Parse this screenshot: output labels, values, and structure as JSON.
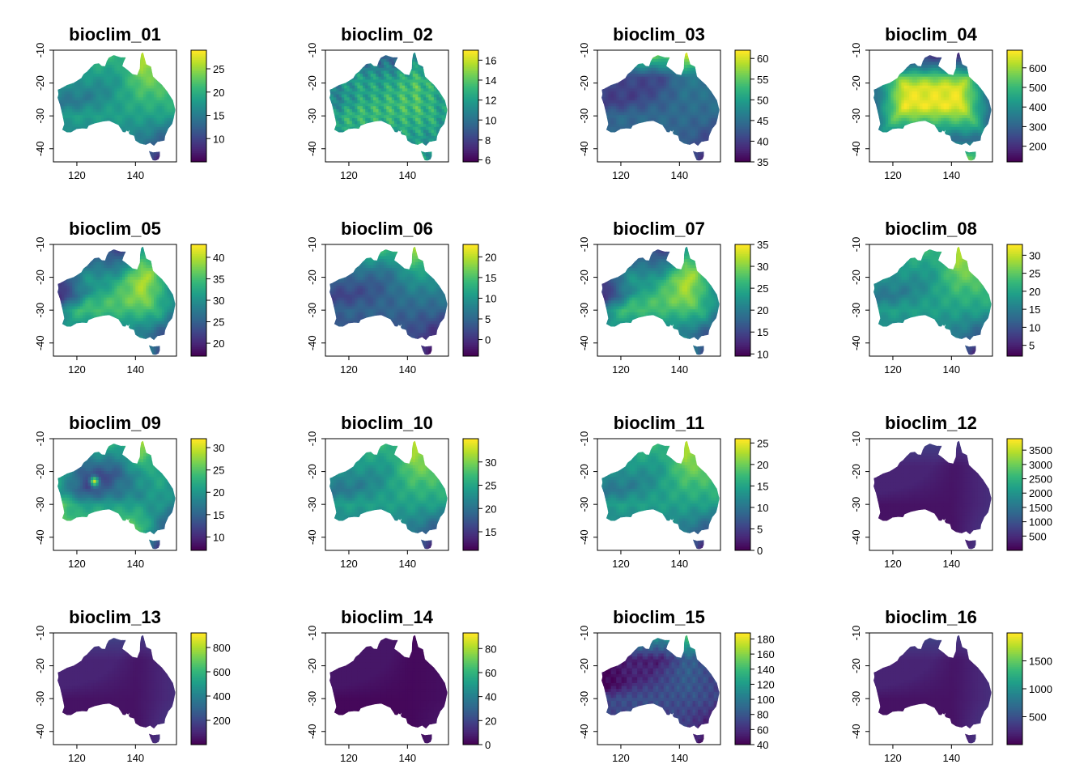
{
  "figure": {
    "layout": {
      "rows": 4,
      "cols": 4
    },
    "colormap": "viridis",
    "colors": {
      "viridis": [
        "#440154",
        "#482878",
        "#3e4989",
        "#31688e",
        "#26828e",
        "#1f9e89",
        "#35b779",
        "#6ece58",
        "#b5de2b",
        "#fde725"
      ],
      "background": "#ffffff",
      "axis": "#000000"
    }
  },
  "chart_data": [
    {
      "type": "heatmap",
      "title": "bioclim_01",
      "xlim": [
        112,
        154
      ],
      "ylim": [
        -44,
        -10
      ],
      "x_ticks": [
        "120",
        "140"
      ],
      "y_ticks": [
        "-10",
        "-20",
        "-30",
        "-40"
      ],
      "legend_ticks": [
        "10",
        "15",
        "20",
        "25"
      ],
      "legend_range": [
        5,
        29
      ],
      "pattern": "temp_north",
      "hotspot": false
    },
    {
      "type": "heatmap",
      "title": "bioclim_02",
      "xlim": [
        112,
        154
      ],
      "ylim": [
        -44,
        -10
      ],
      "x_ticks": [
        "120",
        "140"
      ],
      "y_ticks": [
        "-10",
        "-20",
        "-30",
        "-40"
      ],
      "legend_ticks": [
        "6",
        "8",
        "10",
        "12",
        "14",
        "16"
      ],
      "legend_range": [
        5.8,
        17
      ],
      "pattern": "diurnal",
      "hotspot": false
    },
    {
      "type": "heatmap",
      "title": "bioclim_03",
      "xlim": [
        112,
        154
      ],
      "ylim": [
        -44,
        -10
      ],
      "x_ticks": [
        "120",
        "140"
      ],
      "y_ticks": [
        "-10",
        "-20",
        "-30",
        "-40"
      ],
      "legend_ticks": [
        "35",
        "40",
        "45",
        "50",
        "55",
        "60"
      ],
      "legend_range": [
        35,
        62
      ],
      "pattern": "isothermality",
      "hotspot": false
    },
    {
      "type": "heatmap",
      "title": "bioclim_04",
      "xlim": [
        112,
        154
      ],
      "ylim": [
        -44,
        -10
      ],
      "x_ticks": [
        "120",
        "140"
      ],
      "y_ticks": [
        "-10",
        "-20",
        "-30",
        "-40"
      ],
      "legend_ticks": [
        "200",
        "300",
        "400",
        "500",
        "600"
      ],
      "legend_range": [
        120,
        690
      ],
      "pattern": "seasonality",
      "hotspot": false
    },
    {
      "type": "heatmap",
      "title": "bioclim_05",
      "xlim": [
        112,
        154
      ],
      "ylim": [
        -44,
        -10
      ],
      "x_ticks": [
        "120",
        "140"
      ],
      "y_ticks": [
        "-10",
        "-20",
        "-30",
        "-40"
      ],
      "legend_ticks": [
        "20",
        "25",
        "30",
        "35",
        "40"
      ],
      "legend_range": [
        17,
        43
      ],
      "pattern": "interior_hot",
      "hotspot": false
    },
    {
      "type": "heatmap",
      "title": "bioclim_06",
      "xlim": [
        112,
        154
      ],
      "ylim": [
        -44,
        -10
      ],
      "x_ticks": [
        "120",
        "140"
      ],
      "y_ticks": [
        "-10",
        "-20",
        "-30",
        "-40"
      ],
      "legend_ticks": [
        "0",
        "5",
        "10",
        "15",
        "20"
      ],
      "legend_range": [
        -4,
        23
      ],
      "pattern": "min_temp",
      "hotspot": false
    },
    {
      "type": "heatmap",
      "title": "bioclim_07",
      "xlim": [
        112,
        154
      ],
      "ylim": [
        -44,
        -10
      ],
      "x_ticks": [
        "120",
        "140"
      ],
      "y_ticks": [
        "-10",
        "-20",
        "-30",
        "-40"
      ],
      "legend_ticks": [
        "10",
        "15",
        "20",
        "25",
        "30",
        "35"
      ],
      "legend_range": [
        9.5,
        35
      ],
      "pattern": "interior_hot",
      "hotspot": false
    },
    {
      "type": "heatmap",
      "title": "bioclim_08",
      "xlim": [
        112,
        154
      ],
      "ylim": [
        -44,
        -10
      ],
      "x_ticks": [
        "120",
        "140"
      ],
      "y_ticks": [
        "-10",
        "-20",
        "-30",
        "-40"
      ],
      "legend_ticks": [
        "5",
        "10",
        "15",
        "20",
        "25",
        "30"
      ],
      "legend_range": [
        2,
        33
      ],
      "pattern": "temp_north",
      "hotspot": false
    },
    {
      "type": "heatmap",
      "title": "bioclim_09",
      "xlim": [
        112,
        154
      ],
      "ylim": [
        -44,
        -10
      ],
      "x_ticks": [
        "120",
        "140"
      ],
      "y_ticks": [
        "-10",
        "-20",
        "-30",
        "-40"
      ],
      "legend_ticks": [
        "10",
        "15",
        "20",
        "25",
        "30"
      ],
      "legend_range": [
        7,
        32
      ],
      "pattern": "dry_quarter",
      "hotspot": true
    },
    {
      "type": "heatmap",
      "title": "bioclim_10",
      "xlim": [
        112,
        154
      ],
      "ylim": [
        -44,
        -10
      ],
      "x_ticks": [
        "120",
        "140"
      ],
      "y_ticks": [
        "-10",
        "-20",
        "-30",
        "-40"
      ],
      "legend_ticks": [
        "15",
        "20",
        "25",
        "30"
      ],
      "legend_range": [
        11,
        35
      ],
      "pattern": "temp_north",
      "hotspot": false
    },
    {
      "type": "heatmap",
      "title": "bioclim_11",
      "xlim": [
        112,
        154
      ],
      "ylim": [
        -44,
        -10
      ],
      "x_ticks": [
        "120",
        "140"
      ],
      "y_ticks": [
        "-10",
        "-20",
        "-30",
        "-40"
      ],
      "legend_ticks": [
        "0",
        "5",
        "10",
        "15",
        "20",
        "25"
      ],
      "legend_range": [
        0,
        26
      ],
      "pattern": "temp_north",
      "hotspot": false
    },
    {
      "type": "heatmap",
      "title": "bioclim_12",
      "xlim": [
        112,
        154
      ],
      "ylim": [
        -44,
        -10
      ],
      "x_ticks": [
        "120",
        "140"
      ],
      "y_ticks": [
        "-10",
        "-20",
        "-30",
        "-40"
      ],
      "legend_ticks": [
        "500",
        "1000",
        "1500",
        "2000",
        "2500",
        "3000",
        "3500"
      ],
      "legend_range": [
        0,
        3900
      ],
      "pattern": "precip",
      "hotspot": false
    },
    {
      "type": "heatmap",
      "title": "bioclim_13",
      "xlim": [
        112,
        154
      ],
      "ylim": [
        -44,
        -10
      ],
      "x_ticks": [
        "120",
        "140"
      ],
      "y_ticks": [
        "-10",
        "-20",
        "-30",
        "-40"
      ],
      "legend_ticks": [
        "200",
        "400",
        "600",
        "800"
      ],
      "legend_range": [
        0,
        920
      ],
      "pattern": "precip",
      "hotspot": false
    },
    {
      "type": "heatmap",
      "title": "bioclim_14",
      "xlim": [
        112,
        154
      ],
      "ylim": [
        -44,
        -10
      ],
      "x_ticks": [
        "120",
        "140"
      ],
      "y_ticks": [
        "-10",
        "-20",
        "-30",
        "-40"
      ],
      "legend_ticks": [
        "0",
        "20",
        "40",
        "60",
        "80"
      ],
      "legend_range": [
        0,
        93
      ],
      "pattern": "precip_dry",
      "hotspot": false
    },
    {
      "type": "heatmap",
      "title": "bioclim_15",
      "xlim": [
        112,
        154
      ],
      "ylim": [
        -44,
        -10
      ],
      "x_ticks": [
        "120",
        "140"
      ],
      "y_ticks": [
        "-10",
        "-20",
        "-30",
        "-40"
      ],
      "legend_ticks": [
        "40",
        "60",
        "80",
        "100",
        "120",
        "140",
        "160",
        "180"
      ],
      "legend_range": [
        40,
        188
      ],
      "pattern": "precip_season",
      "hotspot": false
    },
    {
      "type": "heatmap",
      "title": "bioclim_16",
      "xlim": [
        112,
        154
      ],
      "ylim": [
        -44,
        -10
      ],
      "x_ticks": [
        "120",
        "140"
      ],
      "y_ticks": [
        "-10",
        "-20",
        "-30",
        "-40"
      ],
      "legend_ticks": [
        "500",
        "1000",
        "1500"
      ],
      "legend_range": [
        0,
        2000
      ],
      "pattern": "precip",
      "hotspot": false
    }
  ]
}
